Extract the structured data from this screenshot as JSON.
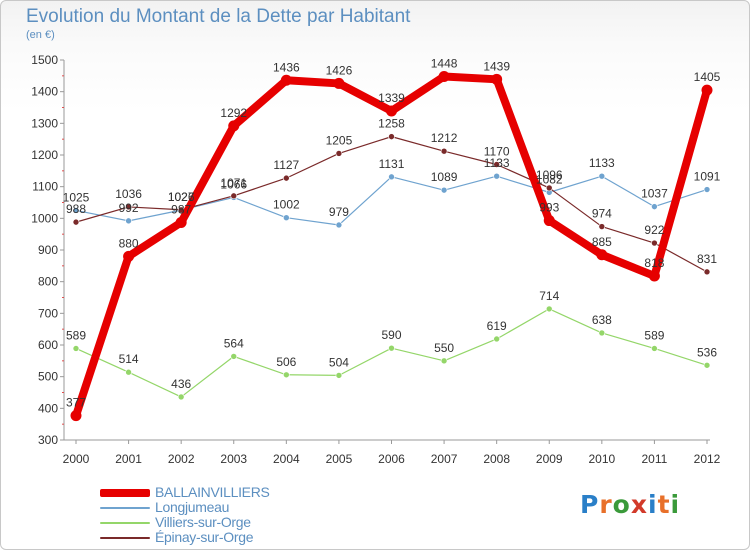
{
  "title": "Evolution du Montant de la Dette par Habitant",
  "unit_label": "(en €)",
  "logo": {
    "text": "Proxiti",
    "letter_colors": [
      "#2a7fc8",
      "#e8702a",
      "#3a9a3a",
      "#d23a2a",
      "#2a7fc8",
      "#e8702a",
      "#3a9a3a"
    ]
  },
  "chart_data": {
    "type": "line",
    "title": "Evolution du Montant de la Dette par Habitant",
    "ylabel": "(en €)",
    "xlabel": "",
    "ylim": [
      300,
      1500
    ],
    "yticks": [
      300,
      400,
      500,
      600,
      700,
      800,
      900,
      1000,
      1100,
      1200,
      1300,
      1400,
      1500
    ],
    "grid": false,
    "legend_position": "bottom-left",
    "x": [
      "2000",
      "2001",
      "2002",
      "2003",
      "2004",
      "2005",
      "2006",
      "2007",
      "2008",
      "2009",
      "2010",
      "2011",
      "2012"
    ],
    "series": [
      {
        "name": "BALLAINVILLIERS",
        "color": "#e60000",
        "width": 8,
        "values": [
          377,
          880,
          987,
          1292,
          1436,
          1426,
          1339,
          1448,
          1439,
          993,
          885,
          818,
          1405
        ],
        "labels": [
          "377",
          "880",
          "987",
          "1292",
          "1436",
          "1426",
          "1339",
          "1448",
          "1439",
          "993",
          "885",
          "818",
          "1405"
        ]
      },
      {
        "name": "Longjumeau",
        "color": "#6fa3cf",
        "width": 1.2,
        "values": [
          1025,
          992,
          1026,
          1066,
          1002,
          979,
          1131,
          1089,
          1133,
          1082,
          1133,
          1037,
          1091
        ],
        "labels": [
          "1025",
          "992",
          "1026",
          "1066",
          "1002",
          "979",
          "1131",
          "1089",
          "1133",
          "1082",
          "1133",
          "1037",
          "1091"
        ]
      },
      {
        "name": "Villiers-sur-Orge",
        "color": "#94d669",
        "width": 1.2,
        "values": [
          589,
          514,
          436,
          564,
          506,
          504,
          590,
          550,
          619,
          714,
          638,
          589,
          536
        ],
        "labels": [
          "589",
          "514",
          "436",
          "564",
          "506",
          "504",
          "590",
          "550",
          "619",
          "714",
          "638",
          "589",
          "536"
        ]
      },
      {
        "name": "Épinay-sur-Orge",
        "color": "#7a2a2a",
        "width": 1.2,
        "values": [
          988,
          1036,
          1027,
          1071,
          1127,
          1205,
          1258,
          1212,
          1170,
          1096,
          974,
          922,
          831
        ],
        "labels": [
          "988",
          "1036",
          "1027",
          "1071",
          "1127",
          "1205",
          "1258",
          "1212",
          "1170",
          "1096",
          "974",
          "922",
          "831"
        ]
      }
    ]
  }
}
